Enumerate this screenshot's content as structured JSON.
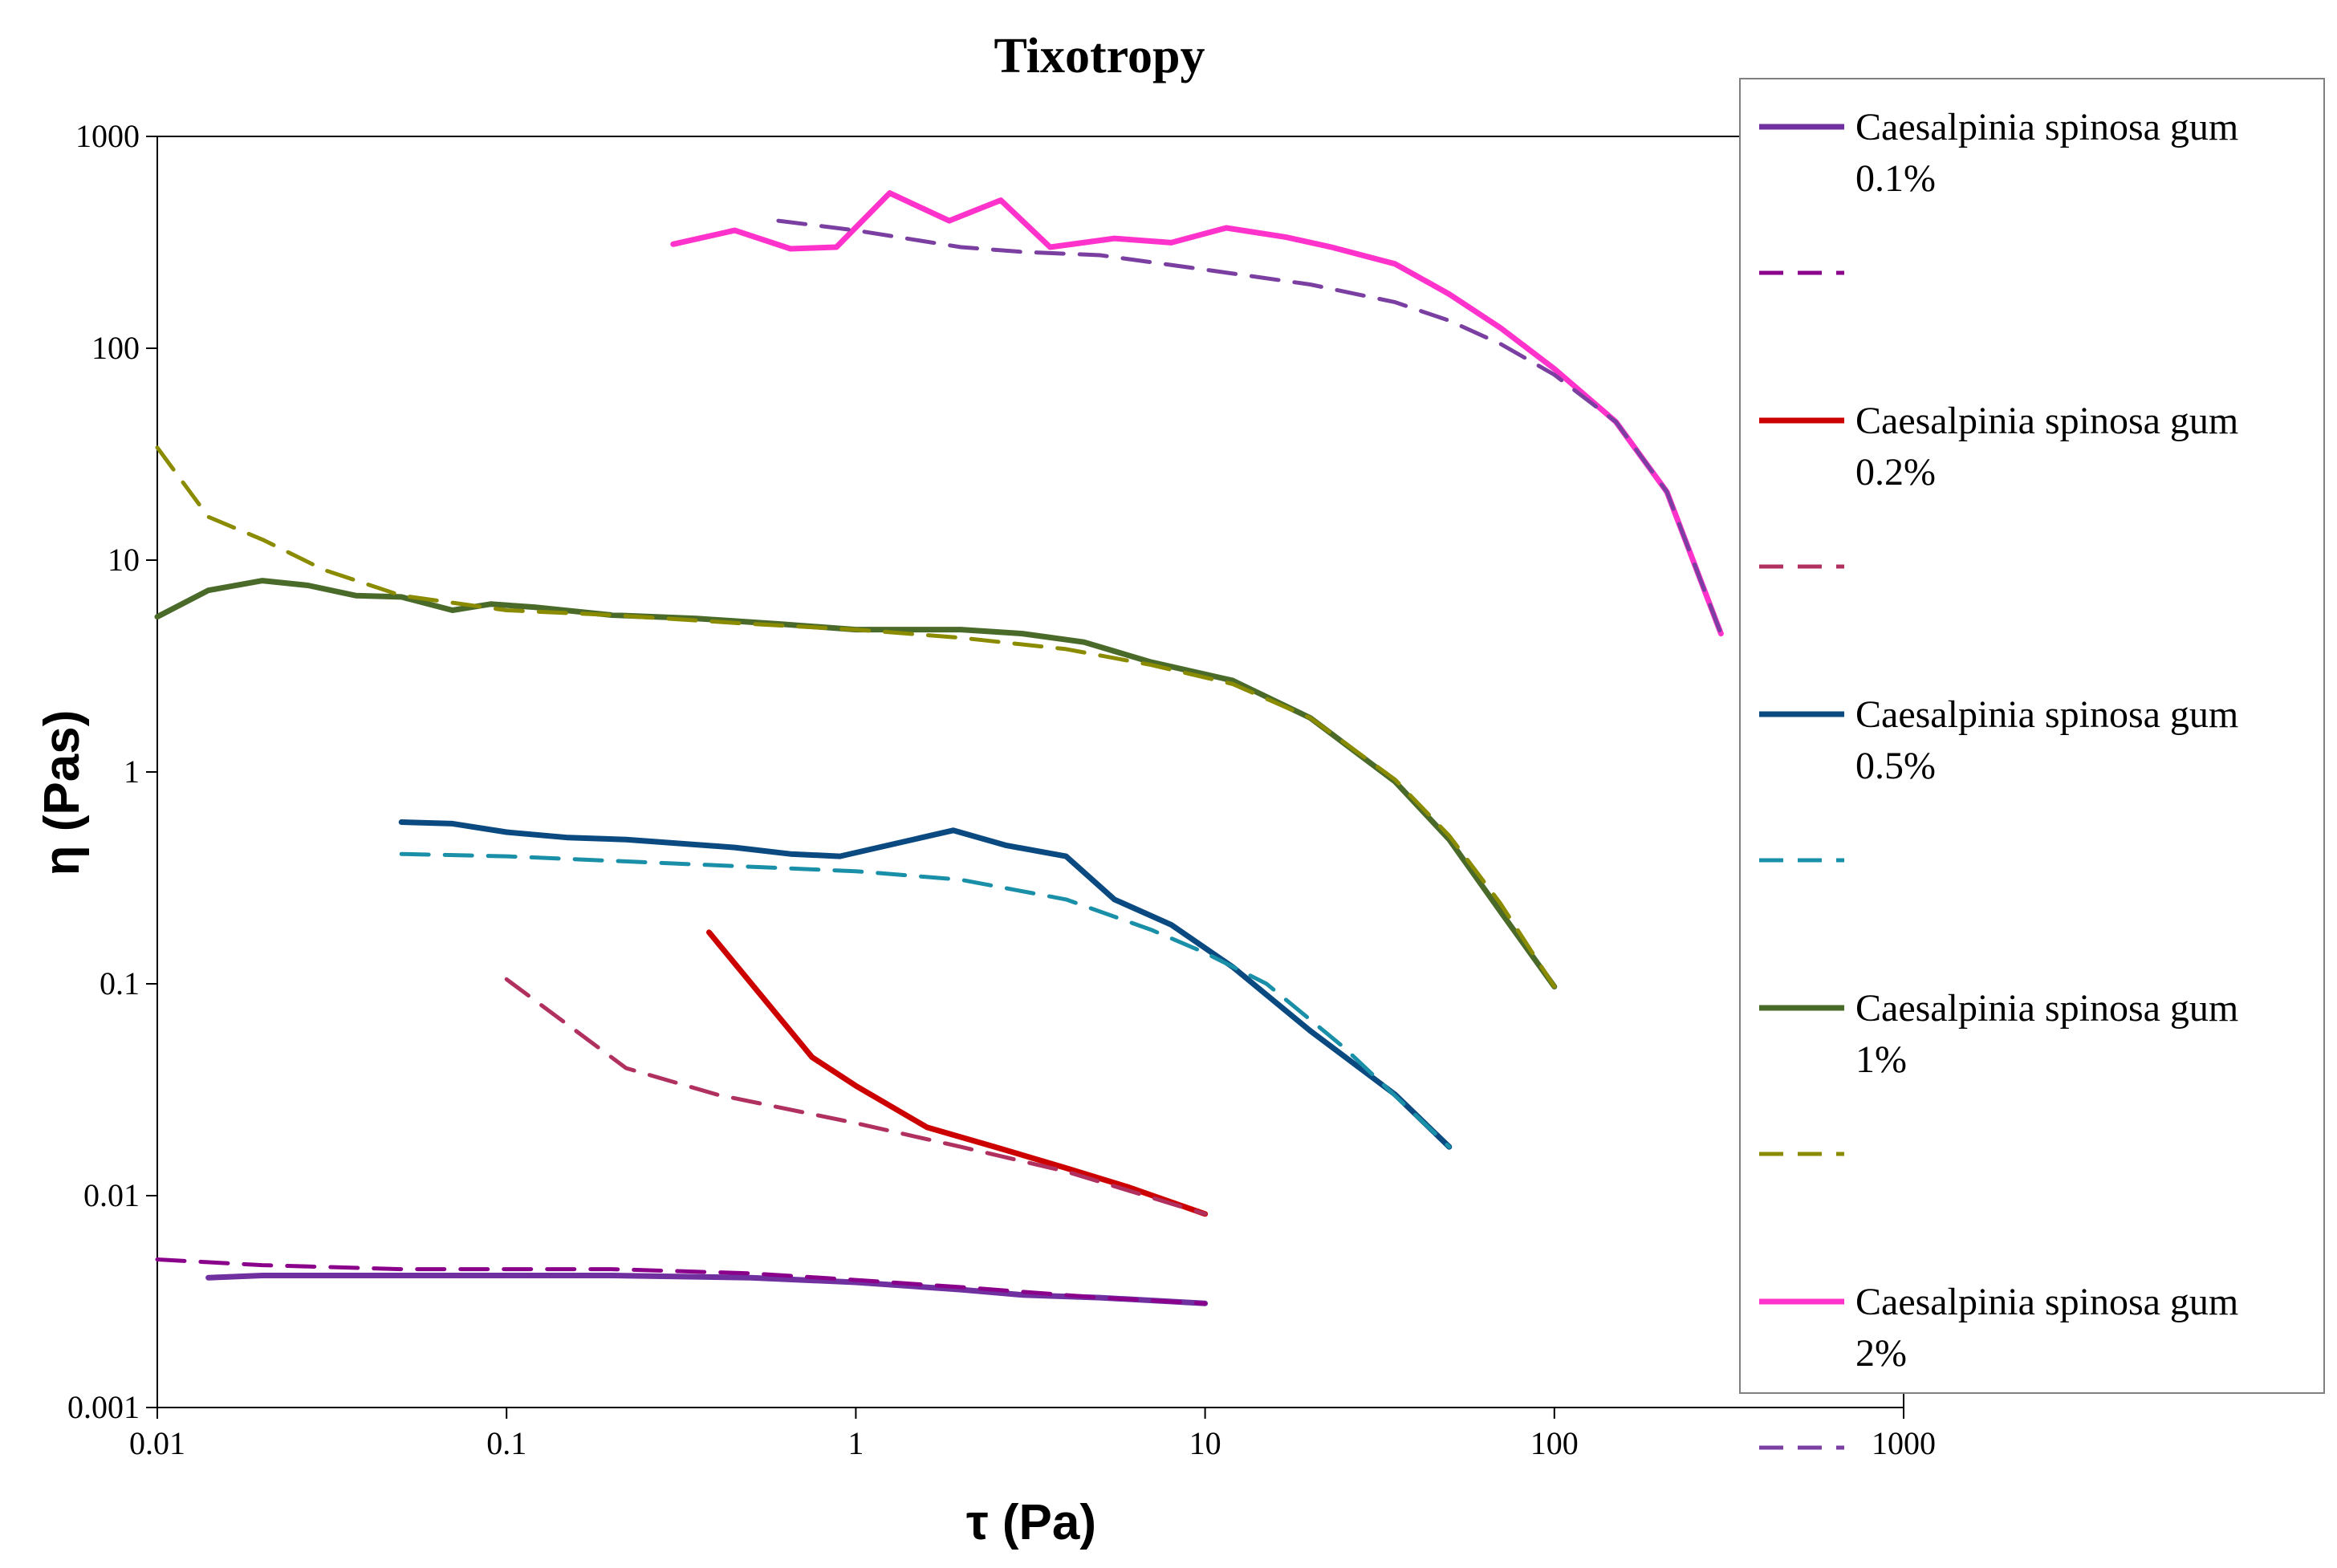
{
  "chart_data": {
    "type": "line",
    "title": "Tixotropy",
    "xlabel": "τ (Pa)",
    "ylabel": "η (Pas)",
    "xscale": "log",
    "yscale": "log",
    "xlim": [
      0.01,
      1000
    ],
    "ylim": [
      0.001,
      1000
    ],
    "x_ticks": [
      "0.01",
      "0.1",
      "1",
      "10",
      "100",
      "1000"
    ],
    "y_ticks": [
      "0.001",
      "0.01",
      "0.1",
      "1",
      "10",
      "100",
      "1000"
    ],
    "legend_position": "right",
    "series": [
      {
        "name": "Caesalpinia spinosa gum 0.1%",
        "label_line1": "Caesalpinia spinosa gum",
        "label_line2": "0.1%",
        "color": "#7030A0",
        "dash": "solid",
        "points": [
          [
            0.014,
            0.0041
          ],
          [
            0.02,
            0.0042
          ],
          [
            0.05,
            0.0042
          ],
          [
            0.1,
            0.0042
          ],
          [
            0.2,
            0.0042
          ],
          [
            0.5,
            0.0041
          ],
          [
            1,
            0.0039
          ],
          [
            2,
            0.0036
          ],
          [
            3,
            0.0034
          ],
          [
            5,
            0.0033
          ],
          [
            10,
            0.0031
          ]
        ]
      },
      {
        "name": "",
        "label_line1": "",
        "label_line2": "",
        "color": "#8B008B",
        "dash": "dashed",
        "points": [
          [
            0.01,
            0.005
          ],
          [
            0.02,
            0.0047
          ],
          [
            0.05,
            0.0045
          ],
          [
            0.1,
            0.0045
          ],
          [
            0.2,
            0.0045
          ],
          [
            0.5,
            0.0043
          ],
          [
            1,
            0.004
          ],
          [
            2,
            0.0037
          ],
          [
            5,
            0.0033
          ],
          [
            10,
            0.0031
          ]
        ]
      },
      {
        "name": "Caesalpinia spinosa gum 0.2%",
        "label_line1": "Caesalpinia spinosa gum",
        "label_line2": "0.2%",
        "color": "#CC0000",
        "dash": "solid",
        "points": [
          [
            0.38,
            0.175
          ],
          [
            0.75,
            0.045
          ],
          [
            1.0,
            0.033
          ],
          [
            1.6,
            0.021
          ],
          [
            2.5,
            0.017
          ],
          [
            4,
            0.0135
          ],
          [
            6,
            0.011
          ],
          [
            10,
            0.0082
          ]
        ]
      },
      {
        "name": "",
        "label_line1": "",
        "label_line2": "",
        "color": "#B03060",
        "dash": "dashed",
        "points": [
          [
            0.1,
            0.105
          ],
          [
            0.22,
            0.04
          ],
          [
            0.4,
            0.03
          ],
          [
            1,
            0.022
          ],
          [
            2,
            0.017
          ],
          [
            4,
            0.013
          ],
          [
            10,
            0.0082
          ]
        ]
      },
      {
        "name": "Caesalpinia spinosa gum 0.5%",
        "label_line1": "Caesalpinia spinosa gum",
        "label_line2": "0.5%",
        "color": "#0B4A80",
        "dash": "solid",
        "points": [
          [
            0.05,
            0.58
          ],
          [
            0.07,
            0.57
          ],
          [
            0.1,
            0.52
          ],
          [
            0.15,
            0.49
          ],
          [
            0.22,
            0.48
          ],
          [
            0.45,
            0.44
          ],
          [
            0.65,
            0.41
          ],
          [
            0.9,
            0.4
          ],
          [
            1.9,
            0.53
          ],
          [
            2.7,
            0.45
          ],
          [
            4,
            0.4
          ],
          [
            5.5,
            0.25
          ],
          [
            8,
            0.19
          ],
          [
            12,
            0.12
          ],
          [
            20,
            0.06
          ],
          [
            35,
            0.03
          ],
          [
            50,
            0.017
          ]
        ]
      },
      {
        "name": "",
        "label_line1": "",
        "label_line2": "",
        "color": "#1A8FA8",
        "dash": "dashed",
        "points": [
          [
            0.05,
            0.41
          ],
          [
            0.1,
            0.4
          ],
          [
            0.3,
            0.37
          ],
          [
            1,
            0.34
          ],
          [
            2,
            0.31
          ],
          [
            4,
            0.25
          ],
          [
            7,
            0.18
          ],
          [
            10,
            0.14
          ],
          [
            15,
            0.1
          ],
          [
            25,
            0.05
          ],
          [
            50,
            0.017
          ]
        ]
      },
      {
        "name": "Caesalpinia spinosa gum 1%",
        "label_line1": "Caesalpinia spinosa gum",
        "label_line2": "1%",
        "color": "#4A6A2A",
        "dash": "solid",
        "points": [
          [
            0.01,
            5.4
          ],
          [
            0.014,
            7.2
          ],
          [
            0.02,
            8.0
          ],
          [
            0.027,
            7.6
          ],
          [
            0.037,
            6.8
          ],
          [
            0.05,
            6.7
          ],
          [
            0.07,
            5.8
          ],
          [
            0.09,
            6.2
          ],
          [
            0.12,
            6.0
          ],
          [
            0.2,
            5.5
          ],
          [
            0.35,
            5.3
          ],
          [
            0.6,
            5.0
          ],
          [
            1,
            4.7
          ],
          [
            2,
            4.7
          ],
          [
            3,
            4.5
          ],
          [
            4.5,
            4.1
          ],
          [
            7,
            3.3
          ],
          [
            12,
            2.7
          ],
          [
            20,
            1.8
          ],
          [
            35,
            0.9
          ],
          [
            50,
            0.48
          ],
          [
            70,
            0.22
          ],
          [
            100,
            0.097
          ]
        ]
      },
      {
        "name": "",
        "label_line1": "",
        "label_line2": "",
        "color": "#8B8B00",
        "dash": "dashed",
        "points": [
          [
            0.01,
            34
          ],
          [
            0.014,
            16
          ],
          [
            0.02,
            12.5
          ],
          [
            0.03,
            9
          ],
          [
            0.05,
            6.8
          ],
          [
            0.1,
            5.8
          ],
          [
            0.2,
            5.5
          ],
          [
            0.5,
            5.0
          ],
          [
            1,
            4.7
          ],
          [
            2,
            4.3
          ],
          [
            4,
            3.8
          ],
          [
            7,
            3.2
          ],
          [
            12,
            2.6
          ],
          [
            20,
            1.8
          ],
          [
            35,
            0.92
          ],
          [
            50,
            0.5
          ],
          [
            70,
            0.24
          ],
          [
            100,
            0.097
          ]
        ]
      },
      {
        "name": "Caesalpinia spinosa gum 2%",
        "label_line1": "Caesalpinia spinosa gum",
        "label_line2": "2%",
        "color": "#FF33CC",
        "dash": "solid",
        "points": [
          [
            0.3,
            310
          ],
          [
            0.45,
            360
          ],
          [
            0.65,
            295
          ],
          [
            0.88,
            300
          ],
          [
            1.25,
            540
          ],
          [
            1.85,
            400
          ],
          [
            2.6,
            500
          ],
          [
            3.6,
            300
          ],
          [
            5.5,
            330
          ],
          [
            8,
            315
          ],
          [
            11.5,
            370
          ],
          [
            17,
            335
          ],
          [
            23,
            300
          ],
          [
            35,
            250
          ],
          [
            50,
            180
          ],
          [
            70,
            125
          ],
          [
            100,
            80
          ],
          [
            150,
            45
          ],
          [
            210,
            21
          ],
          [
            300,
            4.5
          ]
        ]
      },
      {
        "name": "",
        "label_line1": "",
        "label_line2": "",
        "color": "#7A3FA0",
        "dash": "dashed",
        "points": [
          [
            0.6,
            400
          ],
          [
            1,
            360
          ],
          [
            2,
            300
          ],
          [
            3,
            285
          ],
          [
            5,
            275
          ],
          [
            10,
            235
          ],
          [
            20,
            200
          ],
          [
            35,
            165
          ],
          [
            50,
            135
          ],
          [
            70,
            105
          ],
          [
            100,
            75
          ],
          [
            150,
            45
          ],
          [
            210,
            21
          ],
          [
            300,
            4.5
          ]
        ]
      }
    ]
  }
}
